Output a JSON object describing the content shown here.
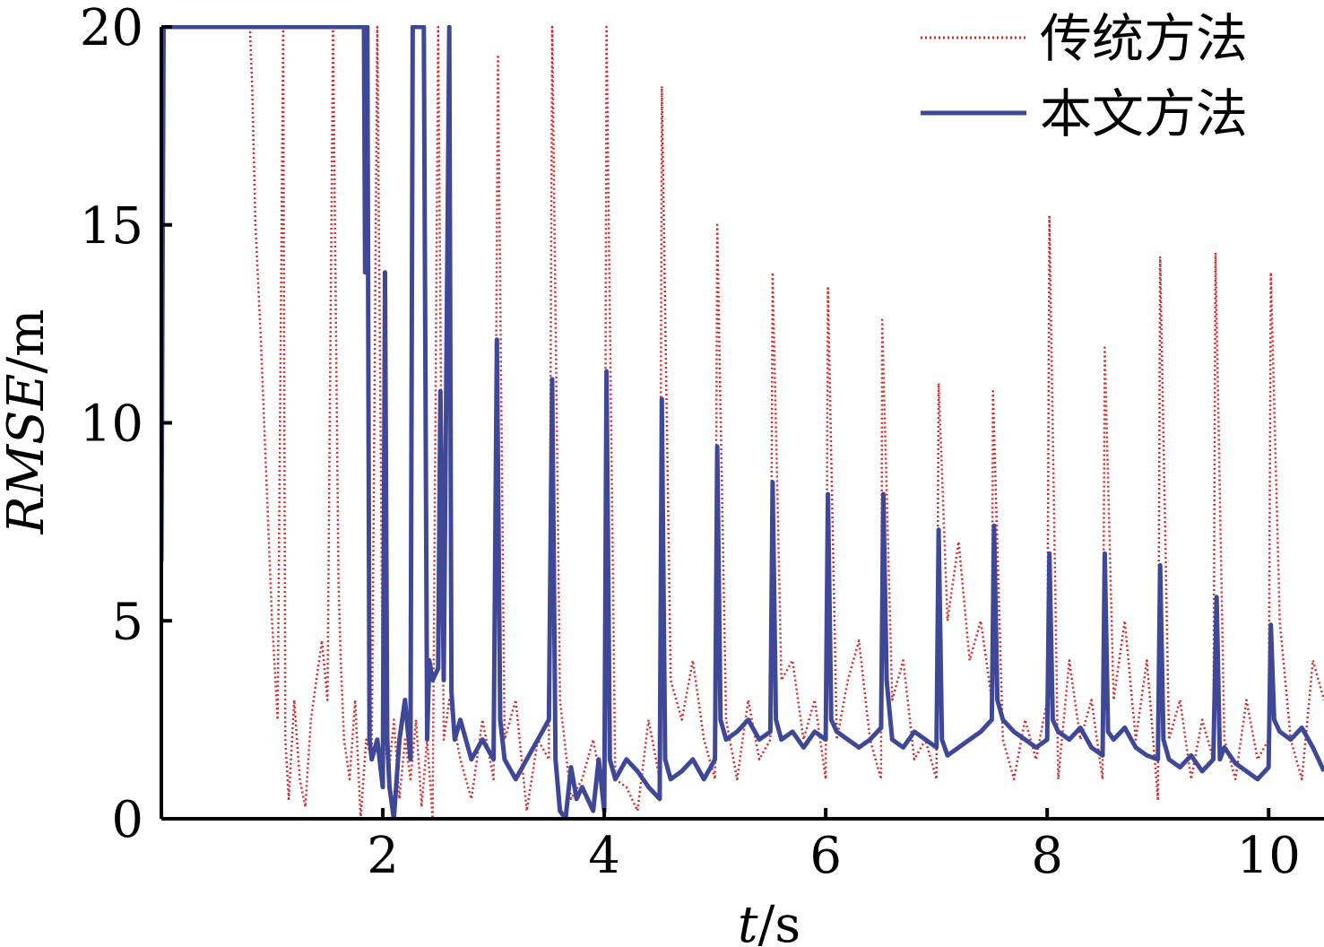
{
  "chart_data": {
    "type": "line",
    "xlabel": {
      "italic": "t",
      "rest": "/s"
    },
    "ylabel": {
      "italic": "RMSE",
      "rest": "/m"
    },
    "xlim": [
      0.0,
      10.5
    ],
    "ylim": [
      0,
      20
    ],
    "xticks": [
      2,
      4,
      6,
      8,
      10
    ],
    "yticks": [
      0,
      5,
      10,
      15,
      20
    ],
    "grid": false,
    "legend_position": "top-right",
    "series": [
      {
        "name": "传统方法",
        "color": "#d42a2a",
        "style": "dotted",
        "x": [
          0.8,
          0.82,
          0.85,
          0.9,
          0.95,
          1.0,
          1.05,
          1.1,
          1.12,
          1.15,
          1.2,
          1.25,
          1.3,
          1.35,
          1.4,
          1.45,
          1.5,
          1.55,
          1.6,
          1.62,
          1.65,
          1.7,
          1.75,
          1.8,
          1.85,
          1.9,
          1.95,
          2.0,
          2.05,
          2.1,
          2.15,
          2.2,
          2.25,
          2.3,
          2.35,
          2.4,
          2.45,
          2.5,
          2.55,
          2.6,
          2.7,
          2.8,
          2.9,
          3.0,
          3.04,
          3.1,
          3.2,
          3.3,
          3.4,
          3.5,
          3.53,
          3.6,
          3.7,
          3.8,
          3.9,
          4.0,
          4.02,
          4.1,
          4.2,
          4.3,
          4.4,
          4.5,
          4.52,
          4.6,
          4.7,
          4.8,
          4.9,
          5.0,
          5.02,
          5.1,
          5.2,
          5.3,
          5.4,
          5.5,
          5.52,
          5.6,
          5.7,
          5.8,
          5.9,
          6.0,
          6.02,
          6.1,
          6.2,
          6.3,
          6.4,
          6.5,
          6.51,
          6.6,
          6.7,
          6.8,
          6.9,
          7.0,
          7.02,
          7.1,
          7.2,
          7.3,
          7.4,
          7.5,
          7.51,
          7.6,
          7.7,
          7.8,
          7.9,
          8.0,
          8.02,
          8.1,
          8.2,
          8.3,
          8.4,
          8.5,
          8.52,
          8.6,
          8.7,
          8.8,
          8.9,
          9.0,
          9.02,
          9.1,
          9.2,
          9.3,
          9.4,
          9.5,
          9.52,
          9.6,
          9.7,
          9.8,
          9.9,
          10.0,
          10.02,
          10.1,
          10.2,
          10.3,
          10.4,
          10.5
        ],
        "y": [
          20,
          18.5,
          15,
          12,
          8.5,
          5,
          2.5,
          20,
          2,
          0.5,
          3,
          1,
          0.3,
          2.5,
          3.5,
          4.5,
          3,
          20,
          6,
          4,
          2,
          1,
          3,
          0,
          2,
          1.5,
          20,
          3,
          1,
          2.5,
          0.5,
          2,
          1,
          2.5,
          0.3,
          2,
          0,
          20,
          2,
          3,
          1.5,
          0.5,
          2.5,
          1,
          19.3,
          2,
          3,
          0.2,
          2,
          1.5,
          20,
          3,
          0.5,
          1,
          2,
          0.5,
          20,
          1,
          0.8,
          0.2,
          2.5,
          1,
          18.5,
          3.5,
          2.5,
          4,
          2,
          1,
          15,
          2.5,
          1,
          3,
          1.5,
          2,
          13.8,
          3.5,
          4,
          2,
          3,
          1,
          13.4,
          2,
          3.5,
          4.5,
          2,
          1,
          12.6,
          3,
          4,
          1.5,
          2,
          1,
          11,
          5,
          7,
          4,
          5,
          3,
          10.8,
          2,
          1,
          2.5,
          1.5,
          3,
          15.2,
          1,
          4,
          2,
          3,
          1,
          11.9,
          3,
          5,
          2,
          4,
          0.5,
          14.2,
          2,
          3,
          1,
          2.5,
          1.5,
          14.3,
          2,
          1,
          3,
          1.5,
          2,
          13.8,
          5,
          2,
          1,
          4,
          3
        ]
      },
      {
        "name": "本文方法",
        "color": "#3e4896",
        "style": "solid",
        "x": [
          0.0,
          0.02,
          0.05,
          1.83,
          1.84,
          1.86,
          1.88,
          1.9,
          1.95,
          2.0,
          2.02,
          2.04,
          2.06,
          2.1,
          2.15,
          2.2,
          2.25,
          2.27,
          2.3,
          2.37,
          2.4,
          2.42,
          2.45,
          2.5,
          2.52,
          2.55,
          2.6,
          2.62,
          2.65,
          2.7,
          2.8,
          2.9,
          3.0,
          3.03,
          3.06,
          3.1,
          3.2,
          3.3,
          3.4,
          3.5,
          3.53,
          3.56,
          3.6,
          3.65,
          3.7,
          3.75,
          3.8,
          3.9,
          3.95,
          4.0,
          4.02,
          4.05,
          4.1,
          4.2,
          4.3,
          4.4,
          4.5,
          4.52,
          4.55,
          4.6,
          4.7,
          4.8,
          4.9,
          5.0,
          5.02,
          5.05,
          5.1,
          5.2,
          5.3,
          5.4,
          5.5,
          5.52,
          5.55,
          5.6,
          5.7,
          5.8,
          5.9,
          6.0,
          6.02,
          6.05,
          6.1,
          6.2,
          6.3,
          6.4,
          6.5,
          6.52,
          6.55,
          6.6,
          6.7,
          6.8,
          6.9,
          7.0,
          7.02,
          7.05,
          7.1,
          7.2,
          7.3,
          7.4,
          7.5,
          7.52,
          7.55,
          7.6,
          7.7,
          7.8,
          7.9,
          8.0,
          8.02,
          8.05,
          8.1,
          8.2,
          8.3,
          8.4,
          8.5,
          8.52,
          8.55,
          8.6,
          8.7,
          8.8,
          8.9,
          9.0,
          9.02,
          9.05,
          9.1,
          9.2,
          9.3,
          9.4,
          9.5,
          9.53,
          9.56,
          9.6,
          9.7,
          9.8,
          9.9,
          10.0,
          10.02,
          10.05,
          10.1,
          10.2,
          10.3,
          10.4,
          10.5
        ],
        "y": [
          6.5,
          20,
          20,
          20,
          13.8,
          20,
          2,
          1.5,
          2,
          0.8,
          13.8,
          2,
          0.8,
          0,
          2,
          3,
          1.5,
          20,
          20,
          20,
          2,
          4,
          3.5,
          3.8,
          10.8,
          3.5,
          20,
          3.2,
          2,
          2.5,
          1.5,
          2,
          1.5,
          12.1,
          2.5,
          1.5,
          1,
          1.5,
          2,
          2.5,
          11.1,
          1.5,
          0.2,
          0,
          1.3,
          0.5,
          0.8,
          0.2,
          1.5,
          0.2,
          11.3,
          1.5,
          1,
          1.5,
          1.2,
          0.8,
          0.5,
          10.6,
          1.5,
          1,
          1.2,
          1.5,
          1,
          1.5,
          9.4,
          2.5,
          2,
          2.2,
          2.5,
          2,
          2.2,
          8.5,
          2.5,
          2,
          2.2,
          1.8,
          2.2,
          2,
          8.2,
          2.5,
          2.2,
          2,
          1.8,
          2,
          2.3,
          8.2,
          3.5,
          2,
          1.8,
          2.2,
          2,
          1.8,
          7.3,
          2,
          1.6,
          1.8,
          2,
          2.2,
          2.5,
          7.4,
          3,
          2.5,
          2.2,
          2,
          1.8,
          2,
          6.7,
          2.5,
          2.2,
          2,
          2.3,
          1.8,
          1.6,
          6.7,
          2.2,
          2,
          2.3,
          1.8,
          1.6,
          1.5,
          6.4,
          2,
          1.5,
          1.3,
          1.6,
          1.2,
          1.5,
          5.6,
          1.5,
          1.8,
          1.4,
          1.2,
          1,
          1.3,
          4.9,
          2.5,
          2.2,
          2,
          2.3,
          1.8,
          1.2
        ]
      }
    ]
  }
}
